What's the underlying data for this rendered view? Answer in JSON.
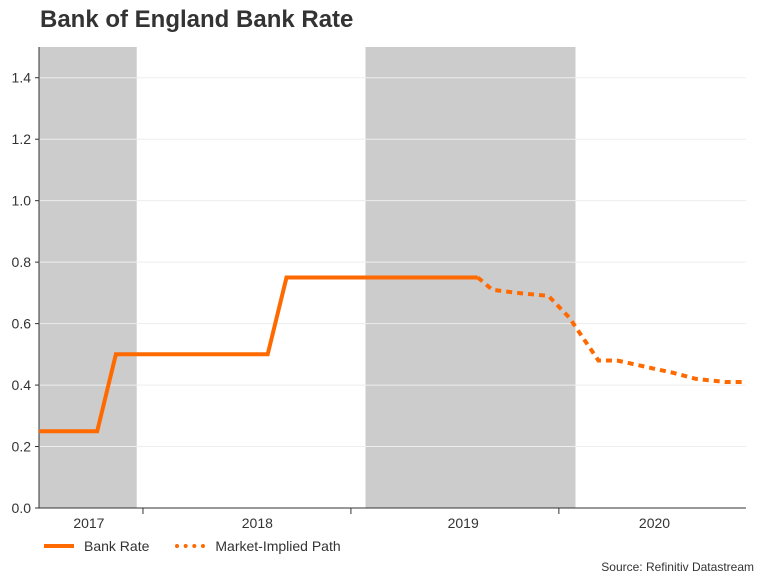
{
  "chart_data": {
    "type": "line",
    "title": "Bank of England Bank Rate",
    "source": "Source: Refinitiv Datastream",
    "ylim": [
      0,
      1.5
    ],
    "yticks": [
      0.0,
      0.2,
      0.4,
      0.6,
      0.8,
      1.0,
      1.2,
      1.4
    ],
    "ytick_labels": [
      "0.0",
      "0.2",
      "0.4",
      "0.6",
      "0.8",
      "1.0",
      "1.2",
      "1.4"
    ],
    "xlim": [
      2017.0,
      2020.4
    ],
    "year_labels": [
      {
        "label": "2017",
        "x": 2017.24
      },
      {
        "label": "2018",
        "x": 2018.05
      },
      {
        "label": "2019",
        "x": 2019.04
      },
      {
        "label": "2020",
        "x": 2019.96
      }
    ],
    "year_boundaries": [
      2017.5,
      2018.5,
      2019.5
    ],
    "shaded_regions": [
      [
        2017.0,
        2017.47
      ],
      [
        2018.57,
        2019.58
      ]
    ],
    "grid": true,
    "colors": {
      "series": "#ff6a00",
      "shade": "#cccccc",
      "grid": "#ededed",
      "axis": "#333333"
    },
    "series": [
      {
        "name": "Bank Rate",
        "style": "solid",
        "x": [
          2017.0,
          2017.28,
          2017.37,
          2018.1,
          2018.19,
          2019.11
        ],
        "y": [
          0.25,
          0.25,
          0.5,
          0.5,
          0.75,
          0.75
        ]
      },
      {
        "name": "Market-Implied Path",
        "style": "dashed",
        "x": [
          2019.11,
          2019.18,
          2019.3,
          2019.45,
          2019.55,
          2019.69,
          2019.78,
          2019.98,
          2020.05,
          2020.16,
          2020.3,
          2020.4
        ],
        "y": [
          0.75,
          0.71,
          0.7,
          0.69,
          0.62,
          0.48,
          0.48,
          0.45,
          0.44,
          0.42,
          0.41,
          0.41
        ]
      }
    ]
  }
}
